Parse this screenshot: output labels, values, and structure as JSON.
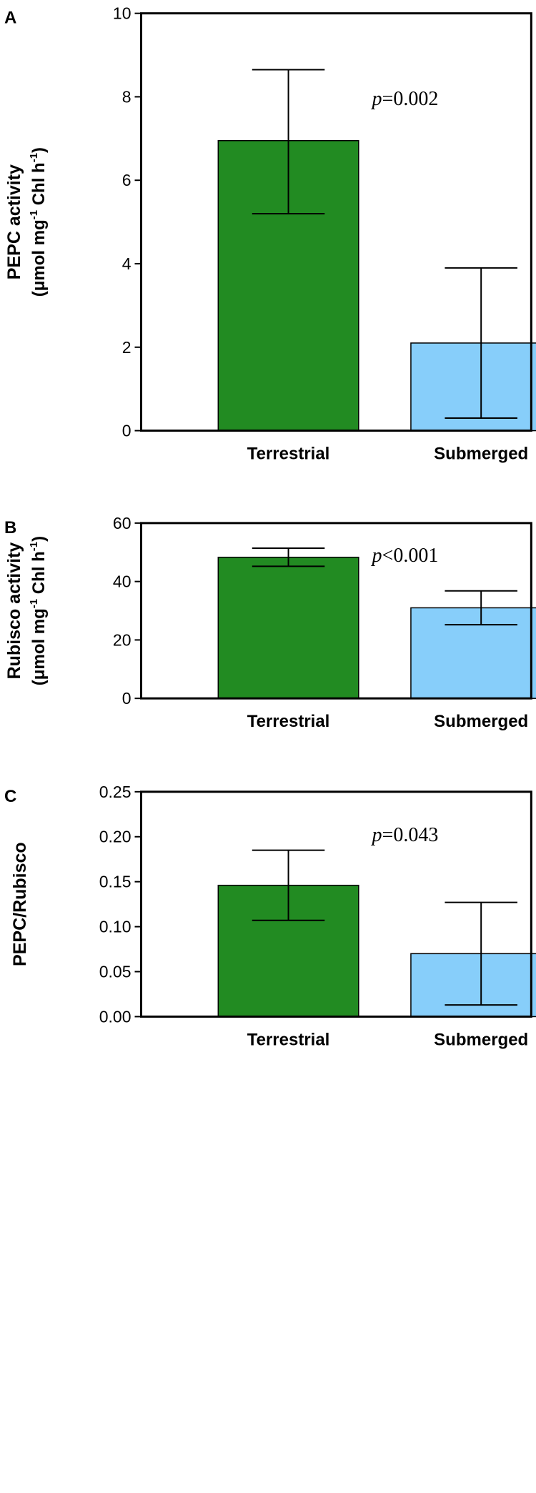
{
  "chart_data": [
    {
      "type": "bar",
      "panel": "A",
      "ylabel": "PEPC activity",
      "ylabel_unit_parts": [
        "(μmol mg",
        "-1",
        " Chl h",
        "-1",
        ")"
      ],
      "categories": [
        "Terrestrial",
        "Submerged"
      ],
      "values": [
        6.95,
        2.1
      ],
      "errors_upper": [
        8.65,
        3.9
      ],
      "errors_lower": [
        5.2,
        0.3
      ],
      "ylim": [
        0,
        10
      ],
      "yticks": [
        0,
        2,
        4,
        6,
        8,
        10
      ],
      "ytick_labels": [
        "0",
        "2",
        "4",
        "6",
        "8",
        "10"
      ],
      "pvalue_var": "p",
      "pvalue_rest": "=0.002",
      "colors": [
        "#228b22",
        "#87cefa"
      ]
    },
    {
      "type": "bar",
      "panel": "B",
      "ylabel": "Rubisco activity",
      "ylabel_unit_parts": [
        "(μmol mg",
        "-1",
        " Chl h",
        "-1",
        ")"
      ],
      "categories": [
        "Terrestrial",
        "Submerged"
      ],
      "values": [
        48.3,
        31.0
      ],
      "errors_upper": [
        51.4,
        36.8
      ],
      "errors_lower": [
        45.2,
        25.2
      ],
      "ylim": [
        0,
        60
      ],
      "yticks": [
        0,
        20,
        40,
        60
      ],
      "ytick_labels": [
        "0",
        "20",
        "40",
        "60"
      ],
      "pvalue_var": "p",
      "pvalue_rest": "<0.001",
      "colors": [
        "#228b22",
        "#87cefa"
      ]
    },
    {
      "type": "bar",
      "panel": "C",
      "ylabel": "PEPC/Rubisco",
      "ylabel_unit_parts": [],
      "categories": [
        "Terrestrial",
        "Submerged"
      ],
      "values": [
        0.146,
        0.07
      ],
      "errors_upper": [
        0.185,
        0.127
      ],
      "errors_lower": [
        0.107,
        0.013
      ],
      "ylim": [
        0,
        0.25
      ],
      "yticks": [
        0,
        0.05,
        0.1,
        0.15,
        0.2,
        0.25
      ],
      "ytick_labels": [
        "0.00",
        "0.05",
        "0.10",
        "0.15",
        "0.20",
        "0.25"
      ],
      "pvalue_var": "p",
      "pvalue_rest": "=0.043",
      "colors": [
        "#228b22",
        "#87cefa"
      ]
    }
  ]
}
